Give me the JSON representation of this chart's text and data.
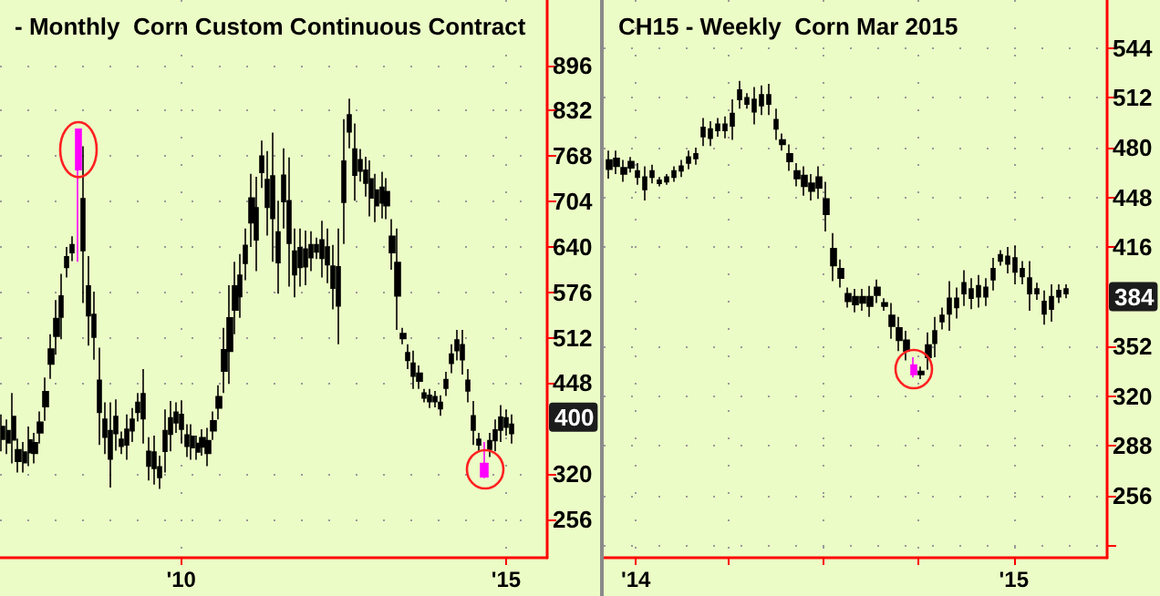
{
  "chart_data": [
    {
      "type": "candlestick",
      "title": "- Monthly  Corn Custom Continuous Contract",
      "xlim": [
        "2007-03-20",
        "2015-08-20"
      ],
      "ylim": [
        202,
        988
      ],
      "xticks": [
        {
          "value": "2010-01-01",
          "label": "'10"
        },
        {
          "value": "2015-01-01",
          "label": "'15"
        }
      ],
      "yticks": [
        256,
        320,
        448,
        512,
        576,
        640,
        704,
        768,
        832,
        896
      ],
      "grid": true,
      "annotations": [
        {
          "text": "400",
          "y": 400
        }
      ],
      "series": [
        {
          "color": "#000000",
          "x": [
            "2007-04",
            "2007-05",
            "2007-06",
            "2007-07",
            "2007-08",
            "2007-09",
            "2007-10",
            "2007-11",
            "2007-12",
            "2008-01",
            "2008-02",
            "2008-03",
            "2008-04",
            "2008-05",
            "2008-07",
            "2008-08",
            "2008-09",
            "2008-10",
            "2008-11",
            "2008-12",
            "2009-01",
            "2009-02",
            "2009-03",
            "2009-04",
            "2009-05",
            "2009-06",
            "2009-07",
            "2009-08",
            "2009-09",
            "2009-10",
            "2009-11",
            "2009-12",
            "2010-01",
            "2010-02",
            "2010-03",
            "2010-04",
            "2010-05",
            "2010-06",
            "2010-07",
            "2010-08",
            "2010-09",
            "2010-10",
            "2010-11",
            "2010-12",
            "2011-01",
            "2011-02",
            "2011-03",
            "2011-04",
            "2011-05",
            "2011-06",
            "2011-07",
            "2011-08",
            "2011-09",
            "2011-10",
            "2011-11",
            "2011-12",
            "2012-01",
            "2012-02",
            "2012-03",
            "2012-04",
            "2012-05",
            "2012-06",
            "2012-07",
            "2012-08",
            "2012-09",
            "2012-10",
            "2012-11",
            "2012-12",
            "2013-01",
            "2013-02",
            "2013-03",
            "2013-04",
            "2013-05",
            "2013-06",
            "2013-07",
            "2013-08",
            "2013-09",
            "2013-10",
            "2013-11",
            "2013-12",
            "2014-01",
            "2014-02",
            "2014-03",
            "2014-04",
            "2014-05",
            "2014-06",
            "2014-07",
            "2014-08",
            "2014-10",
            "2014-11",
            "2014-12",
            "2015-01",
            "2015-02"
          ],
          "ohlc": [
            [
              387,
              404,
              352,
              369
            ],
            [
              381,
              397,
              348,
              364
            ],
            [
              401,
              434,
              335,
              368
            ],
            [
              354,
              370,
              322,
              338
            ],
            [
              351,
              365,
              322,
              336
            ],
            [
              368,
              387,
              331,
              350
            ],
            [
              364,
              378,
              335,
              349
            ],
            [
              393,
              408,
              363,
              378
            ],
            [
              436,
              456,
              395,
              415
            ],
            [
              496,
              517,
              454,
              475
            ],
            [
              539,
              565,
              488,
              514
            ],
            [
              571,
              602,
              510,
              541
            ],
            [
              626,
              640,
              597,
              611
            ],
            [
              643,
              655,
              620,
              632
            ],
            [
              708,
              782,
              561,
              635
            ],
            [
              585,
              627,
              501,
              543
            ],
            [
              545,
              577,
              481,
              513
            ],
            [
              452,
              498,
              361,
              407
            ],
            [
              397,
              421,
              348,
              372
            ],
            [
              381,
              421,
              301,
              341
            ],
            [
              401,
              425,
              353,
              377
            ],
            [
              369,
              380,
              348,
              359
            ],
            [
              383,
              404,
              340,
              361
            ],
            [
              397,
              413,
              365,
              381
            ],
            [
              421,
              434,
              394,
              407
            ],
            [
              433,
              468,
              363,
              398
            ],
            [
              352,
              372,
              311,
              331
            ],
            [
              351,
              374,
              305,
              328
            ],
            [
              330,
              346,
              299,
              315
            ],
            [
              381,
              411,
              322,
              352
            ],
            [
              399,
              423,
              352,
              376
            ],
            [
              407,
              421,
              378,
              392
            ],
            [
              404,
              424,
              363,
              383
            ],
            [
              375,
              390,
              344,
              359
            ],
            [
              373,
              390,
              340,
              357
            ],
            [
              363,
              374,
              340,
              351
            ],
            [
              371,
              383,
              346,
              358
            ],
            [
              367,
              385,
              331,
              349
            ],
            [
              395,
              408,
              368,
              381
            ],
            [
              429,
              445,
              397,
              413
            ],
            [
              495,
              526,
              434,
              465
            ],
            [
              540,
              586,
              447,
              493
            ],
            [
              585,
              619,
              517,
              551
            ],
            [
              600,
              630,
              540,
              570
            ],
            [
              642,
              666,
              593,
              617
            ],
            [
              709,
              743,
              640,
              674
            ],
            [
              695,
              739,
              606,
              650
            ],
            [
              768,
              790,
              723,
              745
            ],
            [
              735,
              775,
              656,
              696
            ],
            [
              740,
              801,
              619,
              680
            ],
            [
              661,
              705,
              574,
              618
            ],
            [
              741,
              779,
              666,
              704
            ],
            [
              705,
              766,
              584,
              645
            ],
            [
              634,
              666,
              569,
              601
            ],
            [
              639,
              666,
              584,
              611
            ],
            [
              637,
              663,
              586,
              612
            ],
            [
              643,
              662,
              606,
              625
            ],
            [
              643,
              653,
              623,
              633
            ],
            [
              650,
              677,
              597,
              624
            ],
            [
              640,
              666,
              589,
              615
            ],
            [
              613,
              643,
              552,
              582
            ],
            [
              612,
              666,
              503,
              557
            ],
            [
              761,
              820,
              644,
              703
            ],
            [
              826,
              849,
              779,
              802
            ],
            [
              778,
              814,
              705,
              741
            ],
            [
              763,
              778,
              732,
              747
            ],
            [
              748,
              767,
              711,
              730
            ],
            [
              736,
              762,
              683,
              709
            ],
            [
              720,
              743,
              675,
              698
            ],
            [
              724,
              746,
              680,
              702
            ],
            [
              718,
              737,
              679,
              698
            ],
            [
              655,
              679,
              608,
              632
            ],
            [
              618,
              666,
              523,
              571
            ],
            [
              518,
              526,
              503,
              511
            ],
            [
              491,
              503,
              468,
              480
            ],
            [
              476,
              494,
              440,
              458
            ],
            [
              462,
              473,
              440,
              451
            ],
            [
              434,
              440,
              421,
              427
            ],
            [
              431,
              440,
              413,
              422
            ],
            [
              429,
              437,
              414,
              422
            ],
            [
              421,
              431,
              402,
              412
            ],
            [
              453,
              464,
              430,
              441
            ],
            [
              489,
              503,
              462,
              476
            ],
            [
              509,
              523,
              480,
              494
            ],
            [
              502,
              523,
              460,
              481
            ],
            [
              452,
              468,
              421,
              437
            ],
            [
              402,
              423,
              361,
              382
            ],
            [
              369,
              378,
              352,
              361
            ],
            [
              367,
              378,
              344,
              355
            ],
            [
              382,
              397,
              352,
              367
            ],
            [
              400,
              417,
              365,
              382
            ],
            [
              399,
              411,
              374,
              386
            ],
            [
              390,
              404,
              363,
              377
            ]
          ]
        },
        {
          "color": "#ff00ff",
          "x": [
            "2008-06",
            "2014-09"
          ],
          "ohlc": [
            [
              806,
              806,
              619,
              749
            ],
            [
              335,
              365,
              314,
              316
            ]
          ]
        }
      ]
    },
    {
      "type": "candlestick",
      "title": "CH15 - Weekly  Corn Mar 2015",
      "xlim": [
        "2013-12-01",
        "2015-04-01"
      ],
      "ylim": [
        216,
        575
      ],
      "xticks": [
        {
          "value": "2014-01-01",
          "label": "'14"
        },
        {
          "value": "2014-04-01",
          "label": null
        },
        {
          "value": "2014-07-01",
          "label": null
        },
        {
          "value": "2014-10-01",
          "label": null
        },
        {
          "value": "2015-01-01",
          "label": "'15"
        }
      ],
      "yticks": [
        {
          "value": 224,
          "label": null
        },
        256,
        288,
        320,
        352,
        416,
        448,
        480,
        512,
        544
      ],
      "grid": true,
      "annotations": [
        {
          "text": "384",
          "y": 384
        }
      ],
      "series": [
        {
          "color": "#000000",
          "x": [
            "2013-12-06",
            "2013-12-13",
            "2013-12-20",
            "2013-12-27",
            "2014-01-03",
            "2014-01-10",
            "2014-01-17",
            "2014-01-24",
            "2014-01-31",
            "2014-02-07",
            "2014-02-14",
            "2014-02-21",
            "2014-02-28",
            "2014-03-07",
            "2014-03-14",
            "2014-03-21",
            "2014-03-28",
            "2014-04-04",
            "2014-04-11",
            "2014-04-18",
            "2014-04-25",
            "2014-05-02",
            "2014-05-09",
            "2014-05-16",
            "2014-05-23",
            "2014-05-30",
            "2014-06-06",
            "2014-06-13",
            "2014-06-20",
            "2014-06-27",
            "2014-07-04",
            "2014-07-11",
            "2014-07-18",
            "2014-07-25",
            "2014-08-01",
            "2014-08-08",
            "2014-08-15",
            "2014-08-22",
            "2014-08-29",
            "2014-09-05",
            "2014-09-12",
            "2014-09-19",
            "2014-10-03",
            "2014-10-10",
            "2014-10-17",
            "2014-10-24",
            "2014-10-31",
            "2014-11-07",
            "2014-11-14",
            "2014-11-21",
            "2014-11-28",
            "2014-12-05",
            "2014-12-12",
            "2014-12-19",
            "2014-12-26",
            "2015-01-02",
            "2015-01-09",
            "2015-01-16",
            "2015-01-23",
            "2015-01-30",
            "2015-02-06",
            "2015-02-13",
            "2015-02-20"
          ],
          "ohlc": [
            [
              472,
              478,
              460,
              466
            ],
            [
              473,
              478,
              463,
              468
            ],
            [
              467,
              472,
              458,
              463
            ],
            [
              471,
              474,
              464,
              467
            ],
            [
              465,
              470,
              456,
              461
            ],
            [
              461,
              468,
              446,
              453
            ],
            [
              465,
              469,
              457,
              461
            ],
            [
              459,
              461,
              455,
              457
            ],
            [
              461,
              463,
              456,
              458
            ],
            [
              465,
              468,
              458,
              461
            ],
            [
              468,
              472,
              461,
              465
            ],
            [
              474,
              478,
              466,
              470
            ],
            [
              476,
              480,
              469,
              473
            ],
            [
              493,
              499,
              481,
              487
            ],
            [
              492,
              497,
              481,
              486
            ],
            [
              495,
              499,
              487,
              491
            ],
            [
              495,
              500,
              486,
              491
            ],
            [
              502,
              511,
              485,
              494
            ],
            [
              517,
              523,
              505,
              511
            ],
            [
              512,
              515,
              505,
              508
            ],
            [
              511,
              519,
              495,
              503
            ],
            [
              514,
              520,
              501,
              507
            ],
            [
              514,
              521,
              501,
              508
            ],
            [
              498,
              505,
              485,
              492
            ],
            [
              485,
              489,
              478,
              482
            ],
            [
              476,
              482,
              465,
              471
            ],
            [
              465,
              470,
              455,
              460
            ],
            [
              462,
              468,
              449,
              455
            ],
            [
              457,
              463,
              446,
              452
            ],
            [
              461,
              468,
              447,
              454
            ],
            [
              447,
              458,
              426,
              437
            ],
            [
              415,
              425,
              394,
              404
            ],
            [
              402,
              408,
              390,
              396
            ],
            [
              386,
              390,
              377,
              381
            ],
            [
              384,
              389,
              374,
              379
            ],
            [
              384,
              389,
              375,
              380
            ],
            [
              384,
              391,
              371,
              378
            ],
            [
              390,
              395,
              380,
              385
            ],
            [
              380,
              383,
              375,
              378
            ],
            [
              372,
              380,
              357,
              365
            ],
            [
              364,
              371,
              349,
              356
            ],
            [
              356,
              362,
              343,
              349
            ],
            [
              336,
              339,
              331,
              334
            ],
            [
              353,
              361,
              337,
              345
            ],
            [
              362,
              371,
              345,
              354
            ],
            [
              372,
              377,
              363,
              368
            ],
            [
              383,
              394,
              362,
              373
            ],
            [
              383,
              390,
              370,
              377
            ],
            [
              393,
              401,
              378,
              386
            ],
            [
              389,
              396,
              376,
              383
            ],
            [
              391,
              398,
              377,
              384
            ],
            [
              390,
              396,
              378,
              384
            ],
            [
              402,
              409,
              388,
              395
            ],
            [
              411,
              414,
              404,
              407
            ],
            [
              410,
              416,
              399,
              405
            ],
            [
              409,
              417,
              392,
              400
            ],
            [
              402,
              407,
              392,
              397
            ],
            [
              396,
              407,
              375,
              386
            ],
            [
              389,
              393,
              382,
              386
            ],
            [
              381,
              388,
              366,
              373
            ],
            [
              384,
              392,
              368,
              376
            ],
            [
              388,
              392,
              380,
              384
            ],
            [
              389,
              392,
              383,
              386
            ]
          ]
        },
        {
          "color": "#ff00ff",
          "x": [
            "2014-09-26"
          ],
          "ohlc": [
            [
              340,
              345,
              332,
              334
            ]
          ]
        }
      ]
    }
  ]
}
